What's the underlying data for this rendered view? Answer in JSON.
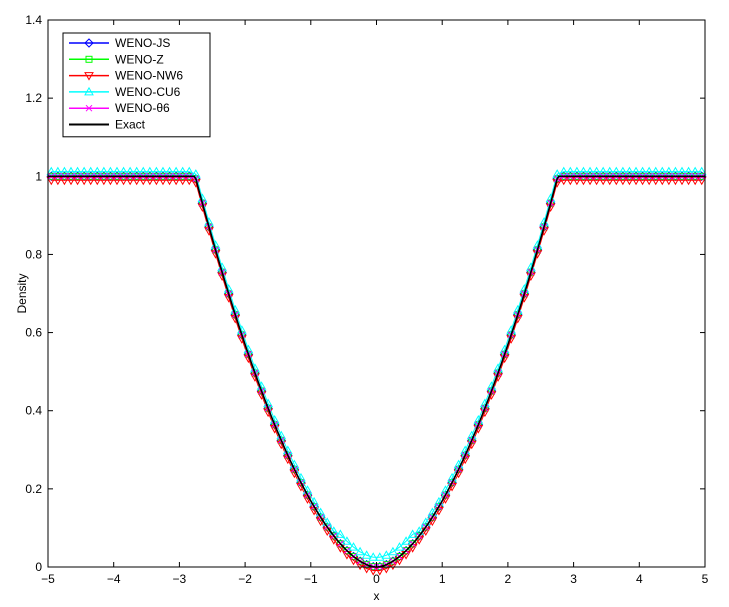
{
  "chart_data": {
    "type": "line",
    "title": "",
    "xlabel": "x",
    "ylabel": "Density",
    "xlim": [
      -5,
      5
    ],
    "ylim": [
      0,
      1.4
    ],
    "xticks": [
      -5,
      -4,
      -3,
      -2,
      -1,
      0,
      1,
      2,
      3,
      4,
      5
    ],
    "yticks": [
      0,
      0.2,
      0.4,
      0.6,
      0.8,
      1,
      1.2,
      1.4
    ],
    "grid": false,
    "legend_position": "top-left",
    "series": [
      {
        "name": "WENO-JS",
        "color": "#0000ff",
        "marker": "diamond",
        "offset": 0.0
      },
      {
        "name": "WENO-Z",
        "color": "#00ff00",
        "marker": "square",
        "offset": 0.0
      },
      {
        "name": "WENO-NW6",
        "color": "#ff0000",
        "marker": "triangle-down",
        "offset": -0.01
      },
      {
        "name": "WENO-CU6",
        "color": "#00ffff",
        "marker": "triangle-up",
        "offset": 0.012
      },
      {
        "name": "WENO-θ6",
        "color": "#ff00ff",
        "marker": "x",
        "offset": 0.0
      },
      {
        "name": "Exact",
        "color": "#000000",
        "marker": "none",
        "offset": 0.0
      }
    ],
    "exact_profile": {
      "plateau_value": 1.0,
      "plateau_edge_x": 2.76,
      "min_value": 0.0
    }
  }
}
